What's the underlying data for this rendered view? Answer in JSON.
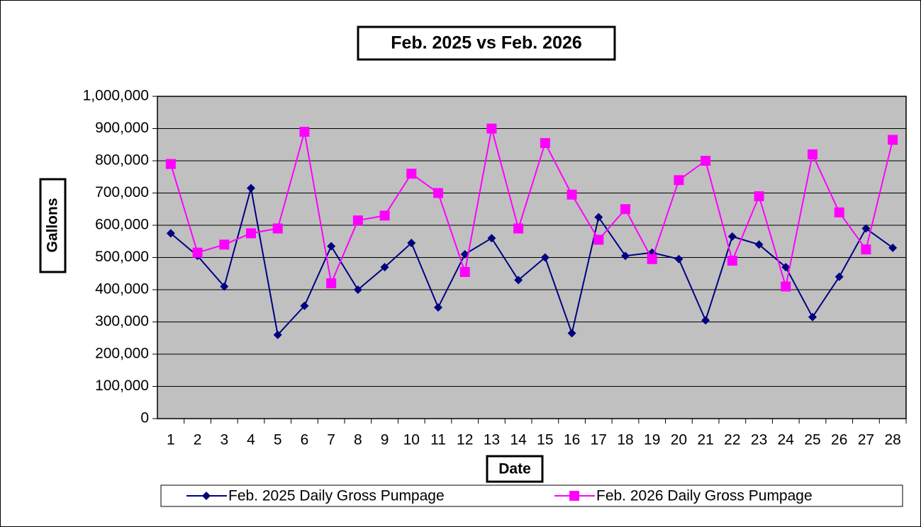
{
  "chart_data": {
    "type": "line",
    "title": "Feb. 2025 vs Feb. 2026",
    "x_label": "Date",
    "y_label": "Gallons",
    "categories": [
      "1",
      "2",
      "3",
      "4",
      "5",
      "6",
      "7",
      "8",
      "9",
      "10",
      "11",
      "12",
      "13",
      "14",
      "15",
      "16",
      "17",
      "18",
      "19",
      "20",
      "21",
      "22",
      "23",
      "24",
      "25",
      "26",
      "27",
      "28"
    ],
    "series": [
      {
        "name": "Feb. 2025 Daily Gross Pumpage",
        "color": "#000080",
        "marker": "diamond",
        "values": [
          575000,
          505000,
          410000,
          715000,
          260000,
          350000,
          535000,
          400000,
          470000,
          545000,
          345000,
          510000,
          560000,
          430000,
          500000,
          265000,
          625000,
          505000,
          515000,
          495000,
          305000,
          565000,
          540000,
          470000,
          315000,
          440000,
          590000,
          530000
        ]
      },
      {
        "name": "Feb. 2026 Daily Gross Pumpage",
        "color": "#ff00ff",
        "marker": "square",
        "values": [
          790000,
          515000,
          540000,
          575000,
          590000,
          890000,
          420000,
          615000,
          630000,
          760000,
          700000,
          455000,
          900000,
          590000,
          855000,
          695000,
          555000,
          650000,
          495000,
          740000,
          800000,
          490000,
          690000,
          410000,
          820000,
          640000,
          525000,
          865000
        ]
      }
    ],
    "ylim": [
      0,
      1000000
    ],
    "yticks": [
      0,
      {
        "value": 100000,
        "label": "100,000"
      },
      {
        "value": 200000,
        "label": "200,000"
      },
      {
        "value": 300000,
        "label": "300,000"
      },
      {
        "value": 400000,
        "label": "400,000"
      },
      {
        "value": 500000,
        "label": "500,000"
      },
      {
        "value": 600000,
        "label": "600,000"
      },
      {
        "value": 700000,
        "label": "700,000"
      },
      {
        "value": 800000,
        "label": "800,000"
      },
      {
        "value": 900000,
        "label": "900,000"
      },
      {
        "value": 1000000,
        "label": "1,000,000"
      }
    ],
    "grid": true,
    "plot_background": "#c0c0c0",
    "legend": "bottom"
  }
}
